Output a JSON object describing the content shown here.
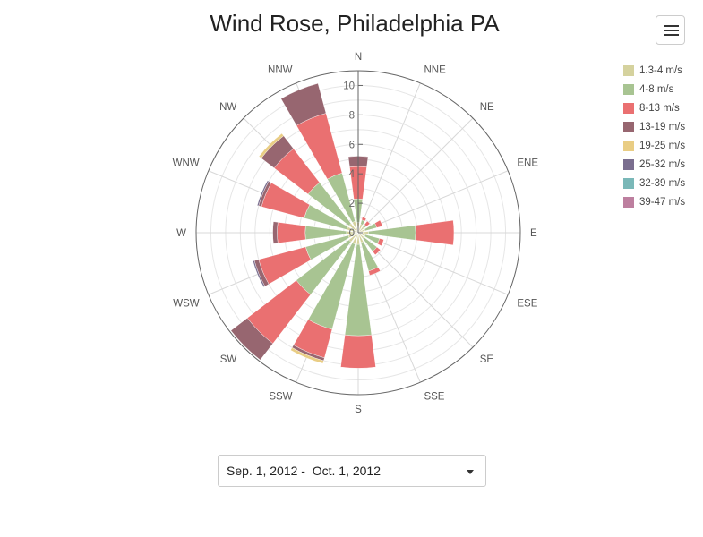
{
  "chart_data": {
    "type": "windrose",
    "title": "Wind Rose, Philadelphia PA",
    "directions": [
      "N",
      "NNE",
      "NE",
      "ENE",
      "E",
      "ESE",
      "SE",
      "SSE",
      "S",
      "SSW",
      "SW",
      "WSW",
      "W",
      "WNW",
      "NW",
      "NNW"
    ],
    "radial_ticks": [
      "0",
      "2",
      "4",
      "6",
      "8",
      "10"
    ],
    "rmax": 11,
    "legend_position": "top-right",
    "series": [
      {
        "name": "1.3-4 m/s",
        "color": "#d5d29e",
        "values": [
          0.7,
          0.6,
          0.5,
          0.5,
          0.7,
          0.5,
          0.5,
          0.7,
          0.8,
          0.8,
          0.8,
          0.7,
          0.8,
          0.8,
          0.8,
          0.8
        ]
      },
      {
        "name": "4-8 m/s",
        "color": "#a8c492",
        "values": [
          1.6,
          0.3,
          0.2,
          0.8,
          3.2,
          1.0,
          1.1,
          2.0,
          6.2,
          6.0,
          4.5,
          3.0,
          2.8,
          3.0,
          3.5,
          3.4
        ]
      },
      {
        "name": "8-13 m/s",
        "color": "#ea7071",
        "values": [
          2.2,
          0.2,
          0.3,
          0.4,
          2.6,
          0.3,
          0.3,
          0.3,
          2.2,
          2.0,
          4.2,
          3.3,
          1.9,
          3.0,
          2.9,
          4.2
        ]
      },
      {
        "name": "13-19 m/s",
        "color": "#976670",
        "values": [
          0.7,
          0,
          0,
          0,
          0,
          0,
          0,
          0,
          0,
          0.2,
          1.4,
          0.3,
          0.3,
          0.2,
          1.1,
          2.1
        ]
      },
      {
        "name": "19-25 m/s",
        "color": "#e9cd84",
        "values": [
          0,
          0,
          0,
          0,
          0,
          0,
          0,
          0,
          0,
          0.2,
          0,
          0,
          0,
          0,
          0.2,
          0
        ]
      },
      {
        "name": "25-32 m/s",
        "color": "#7a6e8f",
        "values": [
          0,
          0,
          0,
          0,
          0,
          0,
          0,
          0,
          0,
          0,
          0,
          0.1,
          0,
          0.1,
          0,
          0
        ]
      },
      {
        "name": "32-39 m/s",
        "color": "#7ab8b8",
        "values": [
          0,
          0,
          0,
          0,
          0,
          0,
          0,
          0,
          0,
          0,
          0,
          0,
          0,
          0,
          0,
          0
        ]
      },
      {
        "name": "39-47 m/s",
        "color": "#bd7f9f",
        "values": [
          0,
          0,
          0,
          0,
          0,
          0,
          0,
          0,
          0,
          0,
          0,
          0,
          0,
          0,
          0,
          0
        ]
      }
    ]
  },
  "date_select": {
    "value": "Sep. 1, 2012 -  Oct. 1, 2012"
  },
  "icons": {
    "menu": "hamburger-menu-icon",
    "dropdown": "caret-down-icon"
  }
}
